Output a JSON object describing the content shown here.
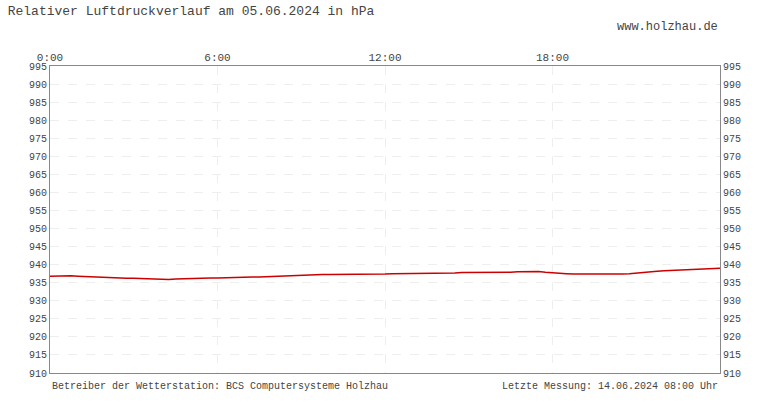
{
  "chart_data": {
    "type": "line",
    "title": "Relativer Luftdruckverlauf am 05.06.2024 in hPa",
    "annotations": [
      "www.holzhau.de",
      "Betreiber der Wetterstation: BCS Computersysteme Holzhau",
      "Letzte Messung: 14.06.2024 08:00 Uhr"
    ],
    "x": [
      0.0,
      0.25,
      0.5,
      0.75,
      1.0,
      1.25,
      1.5,
      1.75,
      2.0,
      2.25,
      2.5,
      2.75,
      3.0,
      3.25,
      3.5,
      3.75,
      4.0,
      4.25,
      4.5,
      4.75,
      5.0,
      5.25,
      5.5,
      5.75,
      6.0,
      6.25,
      6.5,
      6.75,
      7.0,
      7.25,
      7.5,
      7.75,
      8.0,
      8.25,
      8.5,
      8.75,
      9.0,
      9.25,
      9.5,
      9.75,
      10.0,
      10.25,
      10.5,
      10.75,
      11.0,
      11.25,
      11.5,
      11.75,
      12.0,
      12.25,
      12.5,
      12.75,
      13.0,
      13.25,
      13.5,
      13.75,
      14.0,
      14.25,
      14.5,
      14.75,
      15.0,
      15.25,
      15.5,
      15.75,
      16.0,
      16.25,
      16.5,
      16.75,
      17.0,
      17.25,
      17.5,
      17.75,
      18.0,
      18.25,
      18.5,
      18.75,
      19.0,
      19.25,
      19.5,
      19.75,
      20.0,
      20.25,
      20.5,
      20.75,
      21.0,
      21.25,
      21.5,
      21.75,
      22.0,
      22.25,
      22.5,
      22.75,
      23.0,
      23.25,
      23.5,
      23.75,
      24.0
    ],
    "values": [
      936.8,
      936.9,
      937.0,
      936.9,
      936.8,
      936.7,
      936.6,
      936.5,
      936.5,
      936.4,
      936.3,
      936.2,
      936.2,
      936.1,
      936.0,
      935.9,
      935.9,
      935.9,
      936.0,
      936.1,
      936.1,
      936.2,
      936.3,
      936.3,
      936.3,
      936.4,
      936.4,
      936.5,
      936.5,
      936.6,
      936.6,
      936.7,
      936.8,
      936.9,
      937.0,
      937.0,
      937.1,
      937.2,
      937.2,
      937.3,
      937.3,
      937.3,
      937.3,
      937.2,
      937.2,
      937.3,
      937.3,
      937.4,
      937.4,
      937.5,
      937.5,
      937.6,
      937.6,
      937.6,
      937.6,
      937.7,
      937.7,
      937.7,
      937.7,
      937.8,
      937.8,
      937.8,
      937.8,
      937.7,
      937.7,
      937.8,
      937.9,
      938.0,
      938.1,
      938.2,
      938.1,
      937.9,
      937.7,
      937.6,
      937.5,
      937.4,
      937.4,
      937.4,
      937.3,
      937.3,
      937.2,
      937.3,
      937.4,
      937.5,
      937.7,
      937.9,
      938.0,
      938.2,
      938.3,
      938.4,
      938.5,
      938.6,
      938.7,
      938.8,
      938.9,
      939.0,
      939.0
    ],
    "color": "#cc0000",
    "xlim": [
      0,
      24
    ],
    "xticks": [
      {
        "value": 0,
        "label": "0:00"
      },
      {
        "value": 6,
        "label": "6:00"
      },
      {
        "value": 12,
        "label": "12:00"
      },
      {
        "value": 18,
        "label": "18:00"
      }
    ],
    "ylim": [
      910,
      995
    ],
    "yticks": [
      910,
      915,
      920,
      925,
      930,
      935,
      940,
      945,
      950,
      955,
      960,
      965,
      970,
      975,
      980,
      985,
      990,
      995
    ],
    "y2lim": [
      910,
      995
    ],
    "y2ticks": [
      910,
      915,
      920,
      925,
      930,
      935,
      940,
      945,
      950,
      955,
      960,
      965,
      970,
      975,
      980,
      985,
      990,
      995
    ],
    "grid": true
  }
}
